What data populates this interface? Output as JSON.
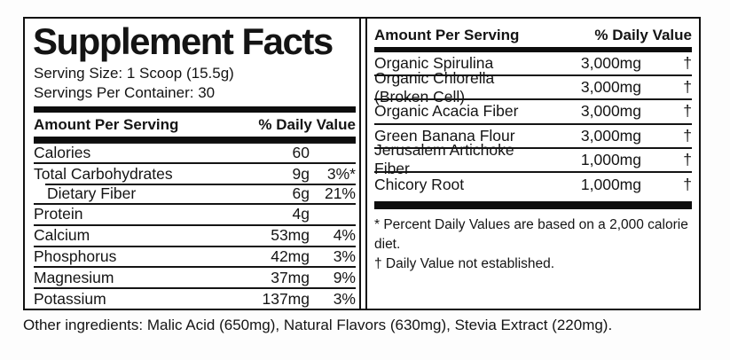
{
  "title": "Supplement Facts",
  "serving_size": "Serving Size: 1 Scoop (15.5g)",
  "servings_per_container": "Servings Per Container: 30",
  "left_table": {
    "header": {
      "amount_label": "Amount Per Serving",
      "dv_label": "% Daily Value"
    },
    "rows": [
      {
        "name": "Calories",
        "amount": "60",
        "dv": "",
        "indent": false
      },
      {
        "name": "Total Carbohydrates",
        "amount": "9g",
        "dv": "3%*",
        "indent": false
      },
      {
        "name": "Dietary Fiber",
        "amount": "6g",
        "dv": "21%",
        "indent": true
      },
      {
        "name": "Protein",
        "amount": "4g",
        "dv": "",
        "indent": false
      },
      {
        "name": "Calcium",
        "amount": "53mg",
        "dv": "4%",
        "indent": false
      },
      {
        "name": "Phosphorus",
        "amount": "42mg",
        "dv": "3%",
        "indent": false
      },
      {
        "name": "Magnesium",
        "amount": "37mg",
        "dv": "9%",
        "indent": false
      },
      {
        "name": "Potassium",
        "amount": "137mg",
        "dv": "3%",
        "indent": false
      }
    ]
  },
  "right_table": {
    "header": {
      "amount_label": "Amount Per Serving",
      "dv_label": "% Daily Value"
    },
    "rows": [
      {
        "name": "Organic Spirulina",
        "amount": "3,000mg",
        "dv": "†"
      },
      {
        "name": "Organic Chlorella (Broken Cell)",
        "amount": "3,000mg",
        "dv": "†"
      },
      {
        "name": "Organic Acacia Fiber",
        "amount": "3,000mg",
        "dv": "†"
      },
      {
        "name": "Green Banana Flour",
        "amount": "3,000mg",
        "dv": "†"
      },
      {
        "name": "Jerusalem Artichoke Fiber",
        "amount": "1,000mg",
        "dv": "†"
      },
      {
        "name": "Chicory Root",
        "amount": "1,000mg",
        "dv": "†"
      }
    ],
    "footnotes": [
      "* Percent Daily Values are based on a 2,000 calorie diet.",
      "† Daily Value not established."
    ]
  },
  "other_ingredients": "Other ingredients: Malic Acid (650mg), Natural Flavors (630mg), Stevia Extract (220mg).",
  "colors": {
    "text": "#141414",
    "rule": "#111111",
    "bar": "#0d0d0d",
    "background": "#ffffff"
  }
}
